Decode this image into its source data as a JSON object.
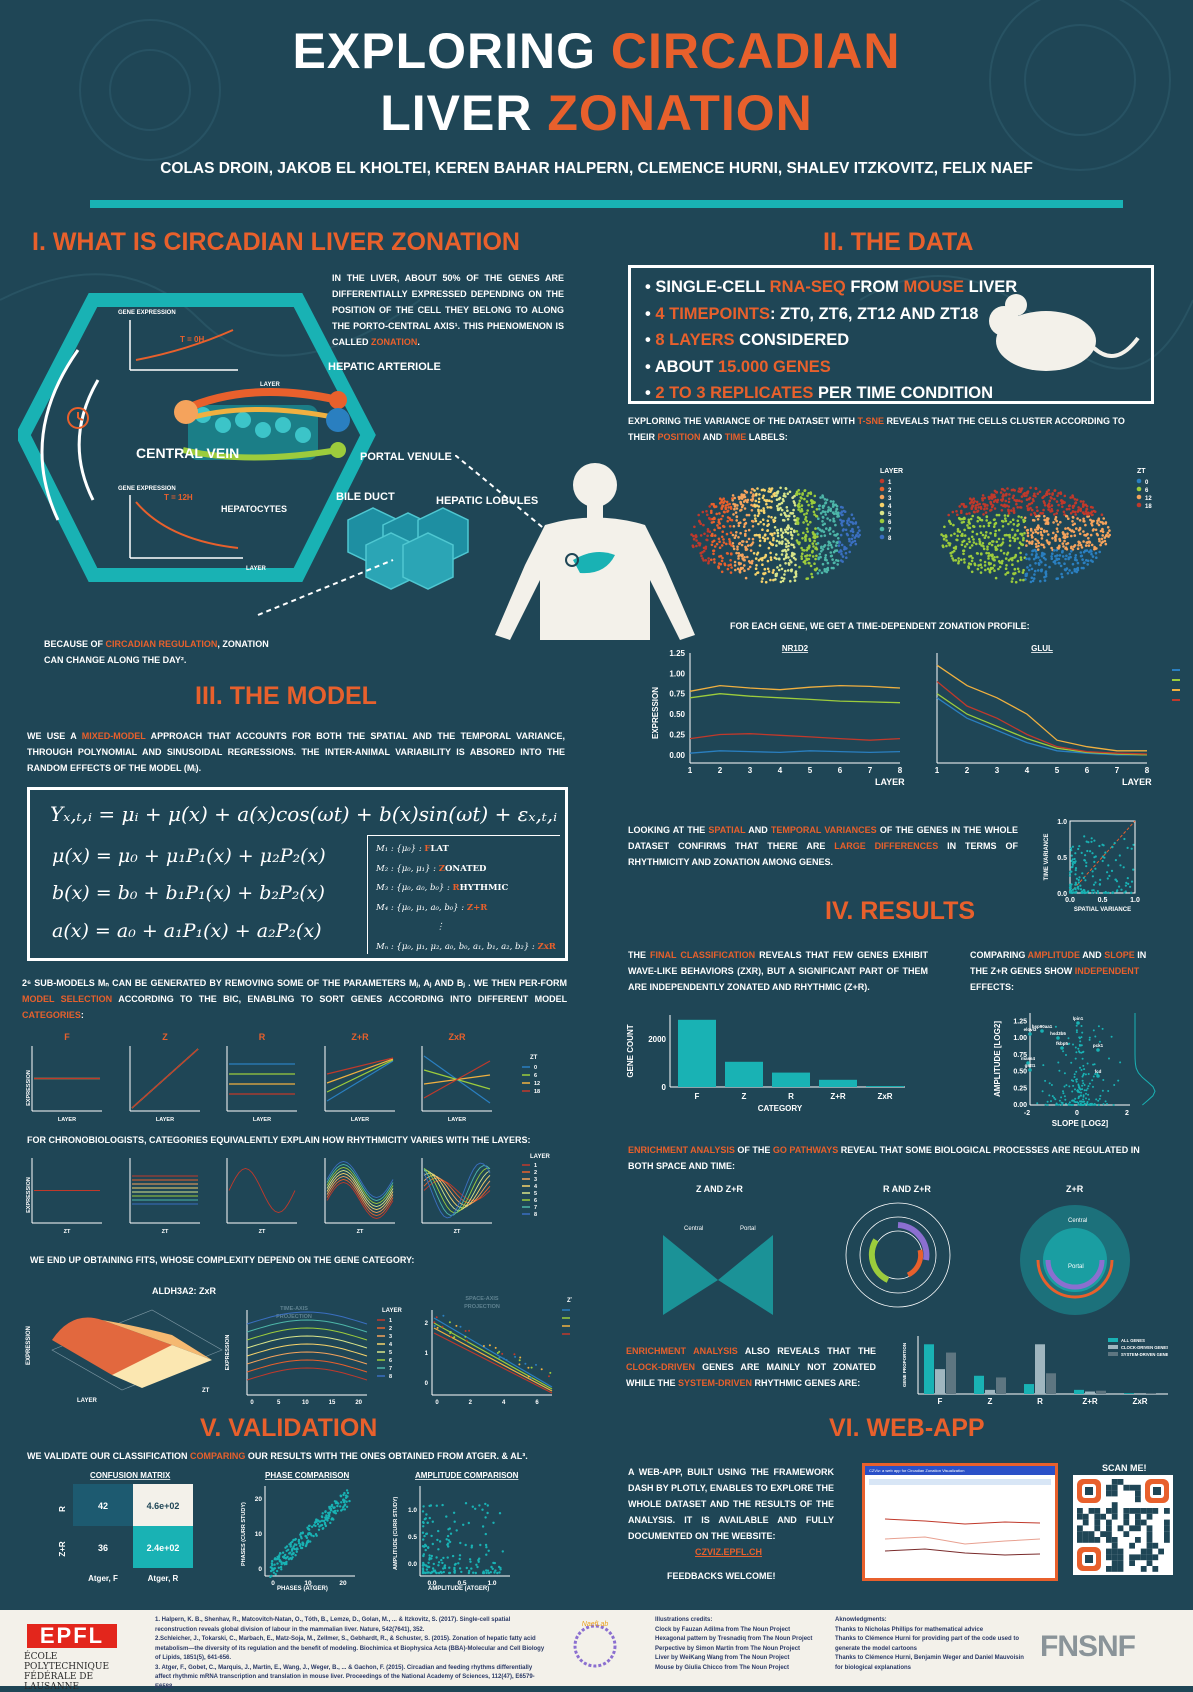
{
  "header": {
    "title_line1_a": "EXPLORING",
    "title_line1_b": "CIRCADIAN",
    "title_line2_a": "LIVER",
    "title_line2_b": "ZONATION",
    "authors": "COLAS DROIN, JAKOB EL KHOLTEI, KEREN BAHAR HALPERN, CLEMENCE HURNI, SHALEV ITZKOVITZ, FELIX NAEF"
  },
  "section1": {
    "title": "I. WHAT IS CIRCADIAN LIVER ZONATION",
    "intro_a": "IN THE LIVER, ABOUT 50% OF THE GENES ARE DIFFERENTIALLY EXPRESSED DEPENDING ON THE POSITION OF THE CELL THEY BELONG TO ALONG THE PORTO-CENTRAL AXIS¹. THIS PHENOMENON IS CALLED",
    "intro_b": "ZONATION",
    "intro_c": ".",
    "labels": {
      "gene_expression": "GENE EXPRESSION",
      "layer": "LAYER",
      "t0": "T = 0H",
      "t12": "T = 12H",
      "central_vein": "CENTRAL VEIN",
      "hepatic_arteriole": "HEPATIC ARTERIOLE",
      "portal_venule": "PORTAL VENULE",
      "bile_duct": "BILE DUCT",
      "hepatocytes": "HEPATOCYTES",
      "hepatic_lobules": "HEPATIC LOBULES"
    },
    "because_a": "BECAUSE OF",
    "because_b": "CIRCADIAN REGULATION",
    "because_c": ", ZONATION CAN CHANGE ALONG THE DAY².",
    "icon_clock": "clock-icon"
  },
  "section2": {
    "title": "II. THE DATA",
    "bullets": [
      {
        "a": "SINGLE-CELL ",
        "b": "RNA-SEQ",
        "c": " FROM ",
        "d": "MOUSE",
        "e": " LIVER"
      },
      {
        "a": "",
        "b": "4 TIMEPOINTS",
        "c": ": ZT0, ZT6, ZT12 AND ZT18",
        "d": "",
        "e": ""
      },
      {
        "a": "",
        "b": "8 LAYERS",
        "c": " CONSIDERED",
        "d": "",
        "e": ""
      },
      {
        "a": "ABOUT ",
        "b": "15.000 GENES",
        "c": "",
        "d": "",
        "e": ""
      },
      {
        "a": "",
        "b": "2 TO 3 REPLICATES",
        "c": " PER TIME CONDITION",
        "d": "",
        "e": ""
      }
    ],
    "tsne_a": "EXPLORING THE VARIANCE OF THE DATASET WITH",
    "tsne_b": "T-SNE",
    "tsne_c": "REVEALS THAT THE CELLS CLUSTER ACCORDING TO THEIR",
    "tsne_d": "POSITION",
    "tsne_e": "AND",
    "tsne_f": "TIME",
    "tsne_g": "LABELS:",
    "layer_legend_title": "LAYER",
    "layer_legend": [
      "1",
      "2",
      "3",
      "4",
      "5",
      "6",
      "7",
      "8"
    ],
    "zt_legend_title": "ZT",
    "zt_legend": [
      "0",
      "6",
      "12",
      "18"
    ],
    "profile_text": "FOR EACH GENE, WE GET A TIME-DEPENDENT ZONATION PROFILE:",
    "variance_a": "LOOKING AT THE",
    "variance_b": "SPATIAL",
    "variance_c": "AND",
    "variance_d": "TEMPORAL VARIANCES",
    "variance_e": "OF THE GENES IN THE WHOLE DATASET CONFIRMS THAT THERE ARE",
    "variance_f": "LARGE DIFFERENCES",
    "variance_g": "IN TERMS OF RHYTHMICITY AND ZONATION AMONG GENES.",
    "icon_mouse": "mouse-icon"
  },
  "section3": {
    "title": "III. THE MODEL",
    "intro_a": "WE USE A",
    "intro_b": "MIXED-MODEL",
    "intro_c": "APPROACH THAT ACCOUNTS FOR BOTH THE SPATIAL AND THE TEMPORAL VARIANCE, THROUGH POLYNOMIAL AND SINUSOIDAL REGRESSIONS. THE INTER-ANIMAL VARIABILITY IS ABSORED INTO THE RANDOM EFFECTS OF THE MODEL (μᵢ).",
    "eq_main": "Yₓ,ₜ,ᵢ = μᵢ + μ(x) + a(x)cos(ωt) + b(x)sin(ωt) + εₓ,ₜ,ᵢ",
    "eq_mu": "μ(x) = μ₀ + μ₁P₁(x) + μ₂P₂(x)",
    "eq_b": "b(x) = b₀ + b₁P₁(x) + b₂P₂(x)",
    "eq_a": "a(x) = a₀ + a₁P₁(x) + a₂P₂(x)",
    "models": [
      {
        "m": "M₁ : {μ₀} : ",
        "c": "F",
        "d": "LAT"
      },
      {
        "m": "M₂ : {μ₀, μ₁} : ",
        "c": "Z",
        "d": "ONATED"
      },
      {
        "m": "M₃ : {μ₀, a₀, b₀} : ",
        "c": "R",
        "d": "HYTHMIC"
      },
      {
        "m": "M₄ : {μ₀, μ₁, a₀, b₀} : ",
        "c": "Z+R",
        "d": ""
      },
      {
        "m": "⋮",
        "c": "",
        "d": ""
      },
      {
        "m": "Mₙ : {μ₀, μ₁, μ₂, a₀, b₀, a₁, b₁, a₂, b₂} : ",
        "c": "ZxR",
        "d": ""
      }
    ],
    "submodels_a": "2⁶ SUB-MODELS Mₙ CAN BE GENERATED BY REMOVING SOME OF THE PARAMETERS μⱼ, aⱼ AND bⱼ . WE THEN PER-FORM",
    "submodels_b": "MODEL SELECTION",
    "submodels_c": "ACCORDING TO THE BIC, ENABLING TO SORT GENES ACCORDING INTO DIFFERENT MODEL",
    "submodels_d": "CATEGORIES",
    "submodels_e": ":",
    "cat_titles": [
      "F",
      "Z",
      "R",
      "Z+R",
      "ZxR"
    ],
    "axis_expression": "EXPRESSION",
    "axis_layer": "LAYER",
    "axis_zt": "ZT",
    "zt_title": "ZT",
    "zt_vals": [
      "0",
      "6",
      "12",
      "18"
    ],
    "layer_title": "LAYER",
    "layer_vals": [
      "1",
      "2",
      "3",
      "4",
      "5",
      "6",
      "7",
      "8"
    ],
    "chrono_text": "FOR CHRONOBIOLOGISTS, CATEGORIES EQUIVALENTLY EXPLAIN HOW RHYTHMICITY VARIES WITH THE LAYERS:",
    "fits_text": "WE END UP OBTAINING FITS, WHOSE COMPLEXITY DEPEND ON THE GENE CATEGORY:",
    "fit_gene": "ALDH3A2: ZxR",
    "time_proj": "TIME-AXIS PROJECTION",
    "space_proj": "SPACE-AXIS PROJECTION"
  },
  "section4": {
    "title": "IV. RESULTS",
    "final_a": "THE",
    "final_b": "FINAL CLASSIFICATION",
    "final_c": "REVEALS THAT FEW GENES EXHIBIT WAVE-LIKE BEHAVIORS (ZxR), BUT A SIGNIFICANT PART OF THEM ARE INDEPENDENTLY ZONATED AND RHYTHMIC (Z+R).",
    "amp_a": "COMPARING",
    "amp_b": "AMPLITUDE",
    "amp_c": "AND",
    "amp_d": "SLOPE",
    "amp_e": "IN THE Z+R GENES SHOW",
    "amp_f": "INDEPENDENT",
    "amp_g": "EFFECTS:",
    "enrich_a": "ENRICHMENT ANALYSIS",
    "enrich_b": "OF THE",
    "enrich_c": "GO PATHWAYS",
    "enrich_d": "REVEAL THAT SOME BIOLOGICAL PROCESSES ARE REGULATED IN BOTH SPACE AND TIME:",
    "go_titles": [
      "Z AND Z+R",
      "R AND Z+R",
      "Z+R"
    ],
    "go_labels": {
      "central": "Central",
      "portal": "Portal"
    },
    "clock_a": "ENRICHMENT ANALYSIS",
    "clock_b": "ALSO REVEALS THAT THE",
    "clock_c": "CLOCK-DRIVEN",
    "clock_d": "GENES ARE MAINLY NOT ZONATED WHILE THE",
    "clock_e": "SYSTEM-DRIVEN",
    "clock_f": "RHYTHMIC GENES ARE:",
    "genes": [
      "lpin1",
      "elovl3",
      "hsd3b5",
      "hsp90aa1",
      "fkbp5",
      "pck1",
      "mass4",
      "gstt1",
      "fcd"
    ]
  },
  "section5": {
    "title": "V. VALIDATION",
    "text_a": "WE VALIDATE OUR CLASSIFICATION",
    "text_b": "COMPARING",
    "text_c": "OUR RESULTS WITH THE ONES OBTAINED FROM ATGER. & AL³.",
    "cm_title": "CONFUSION MATRIX",
    "cm_cells": [
      "42",
      "4.6e+02",
      "36",
      "2.4e+02"
    ],
    "cm_rows": [
      "R",
      "Z+R"
    ],
    "cm_cols": [
      "Atger, F",
      "Atger, R"
    ],
    "phase_title": "PHASE COMPARISON",
    "phase_x": "PHASES (ATGER)",
    "phase_y": "PHASES (CURR STUDY)",
    "amp_title": "AMPLITUDE COMPARISON",
    "amp_x": "AMPLITUDE (ATGER)",
    "amp_y": "AMPLITUDE (CURR STUDY)"
  },
  "section6": {
    "title": "VI. WEB-APP",
    "text": "A WEB-APP, BUILT USING THE FRAMEWORK DASH BY PLOTLY, ENABLES TO EXPLORE THE WHOLE DATASET AND THE RESULTS OF THE ANALYSIS. IT IS AVAILABLE AND FULLY DOCUMENTED ON THE WEBSITE:",
    "url": "CZVIZ.EPFL.CH",
    "feedback": "FEEDBACKS WELCOME!",
    "scan": "SCAN ME!",
    "app_title": "CZViz: a web app for Circadian Zonation Visualization"
  },
  "footer": {
    "epfl": "ÉCOLE POLYTECHNIQUE FÉDÉRALE DE LAUSANNE",
    "refs": [
      "1. Halpern, K. B., Shenhav, R., Matcovitch-Natan, O., Tóth, B., Lemze, D., Golan, M., ... & Itzkovitz, S. (2017). Single-cell spatial reconstruction reveals global division of labour in the mammalian liver. Nature, 542(7641), 352.",
      "2.Schleicher, J., Tokarski, C., Marbach, E., Matz-Soja, M., Zellmer, S., Gebhardt, R., & Schuster, S. (2015). Zonation of hepatic fatty acid metabolism—the diversity of its regulation and the benefit of modeling. Biochimica et Biophysica Acta (BBA)-Molecular and Cell Biology of Lipids, 1851(5), 641-656.",
      "3. Atger, F., Gobet, C., Marquis, J., Martin, E., Wang, J., Weger, B., ... & Gachon, F. (2015). Circadian and feeding rhythms differentially affect rhythmic mRNA transcription and translation in mouse liver. Proceedings of the National Academy of Sciences, 112(47), E6579-E6588."
    ],
    "naef_lab": "NaefLab",
    "credits_title": "Illustrations credits:",
    "credits": [
      "Clock by Fauzan Adilma from The Noun Project",
      "Hexagonal pattern by Tresnadiq from The Noun Project",
      "Perpective by Simon Martin from The Noun Project",
      "Liver by WeiKang Wang from The Noun Project",
      "Mouse by Giulia Chicco from The Noun Project"
    ],
    "ack_title": "Aknowledgments:",
    "ack": [
      "Thanks to Nicholas Phillips for mathematical advice",
      "Thanks to Clémence Hurni for providing part of the code used to generate the model cartoons",
      "Thanks to Clémence Hurni, Benjamin Weger and Daniel Mauvoisin for biological explanations"
    ],
    "fns": "FNSNF"
  },
  "chart_data": [
    {
      "type": "line",
      "title": "NR1D2",
      "xlabel": "LAYER",
      "ylabel": "EXPRESSION",
      "x": [
        1,
        2,
        3,
        4,
        5,
        6,
        7,
        8
      ],
      "ylim": [
        -0.1,
        1.25
      ],
      "yticks": [
        0.0,
        0.25,
        0.5,
        0.75,
        1.0,
        1.25
      ],
      "series": [
        {
          "name": "0",
          "values": [
            0.02,
            0.05,
            0.04,
            0.03,
            0.05,
            0.04,
            0.03,
            0.04
          ]
        },
        {
          "name": "6",
          "values": [
            0.7,
            0.75,
            0.72,
            0.7,
            0.68,
            0.66,
            0.65,
            0.64
          ]
        },
        {
          "name": "12",
          "values": [
            0.78,
            0.85,
            0.82,
            0.8,
            0.83,
            0.85,
            0.84,
            0.82
          ]
        },
        {
          "name": "18",
          "values": [
            0.2,
            0.25,
            0.26,
            0.24,
            0.22,
            0.2,
            0.18,
            0.2
          ]
        }
      ]
    },
    {
      "type": "line",
      "title": "GLUL",
      "xlabel": "LAYER",
      "x": [
        1,
        2,
        3,
        4,
        5,
        6,
        7,
        8
      ],
      "legend_title": "ZT",
      "ylim": [
        -0.1,
        1.25
      ],
      "series": [
        {
          "name": "0",
          "values": [
            0.7,
            0.45,
            0.3,
            0.15,
            0.05,
            0.02,
            0.0,
            0.0
          ]
        },
        {
          "name": "6",
          "values": [
            0.75,
            0.5,
            0.35,
            0.2,
            0.08,
            0.03,
            0.01,
            0.0
          ]
        },
        {
          "name": "12",
          "values": [
            1.1,
            0.85,
            0.7,
            0.5,
            0.18,
            0.1,
            0.05,
            0.05
          ]
        },
        {
          "name": "18",
          "values": [
            0.9,
            0.6,
            0.45,
            0.25,
            0.1,
            0.04,
            0.02,
            0.01
          ]
        }
      ]
    },
    {
      "type": "bar",
      "xlabel": "CATEGORY",
      "ylabel": "GENE COUNT",
      "categories": [
        "F",
        "Z",
        "R",
        "Z+R",
        "ZxR"
      ],
      "values": [
        2800,
        1050,
        600,
        300,
        40
      ],
      "yticks": [
        0,
        2000
      ],
      "ylim": [
        0,
        3000
      ]
    },
    {
      "type": "scatter",
      "xlabel": "SPATIAL VARIANCE",
      "ylabel": "TIME VARIANCE",
      "xlim": [
        0,
        1
      ],
      "ylim": [
        0,
        1
      ],
      "xticks": [
        "0.0",
        "0.5",
        "1.0"
      ],
      "yticks": [
        "0.0",
        "0.5",
        "1.0"
      ]
    },
    {
      "type": "scatter",
      "xlabel": "SLOPE [LOG2]",
      "ylabel": "AMPLITUDE [LOG2]",
      "xticks": [
        "-2",
        "0",
        "2"
      ],
      "yticks": [
        "0.00",
        "0.25",
        "0.50",
        "0.75",
        "1.00",
        "1.25"
      ]
    },
    {
      "type": "bar",
      "categories": [
        "F",
        "Z",
        "R",
        "Z+R",
        "ZxR"
      ],
      "ylabel": "GENE PROPORTION",
      "series": [
        {
          "name": "ALL GENES",
          "values": [
            0.6,
            0.22,
            0.12,
            0.05,
            0.01
          ]
        },
        {
          "name": "CLOCK-DRIVEN GENES",
          "values": [
            0.3,
            0.05,
            0.6,
            0.03,
            0.0
          ]
        },
        {
          "name": "SYSTEM-DRIVEN GENES",
          "values": [
            0.5,
            0.2,
            0.25,
            0.04,
            0.01
          ]
        }
      ]
    },
    {
      "type": "heatmap",
      "title": "CONFUSION MATRIX",
      "rows": [
        "R",
        "Z+R"
      ],
      "cols": [
        "Atger, F",
        "Atger, R"
      ],
      "values": [
        [
          42,
          460
        ],
        [
          36,
          240
        ]
      ]
    }
  ]
}
